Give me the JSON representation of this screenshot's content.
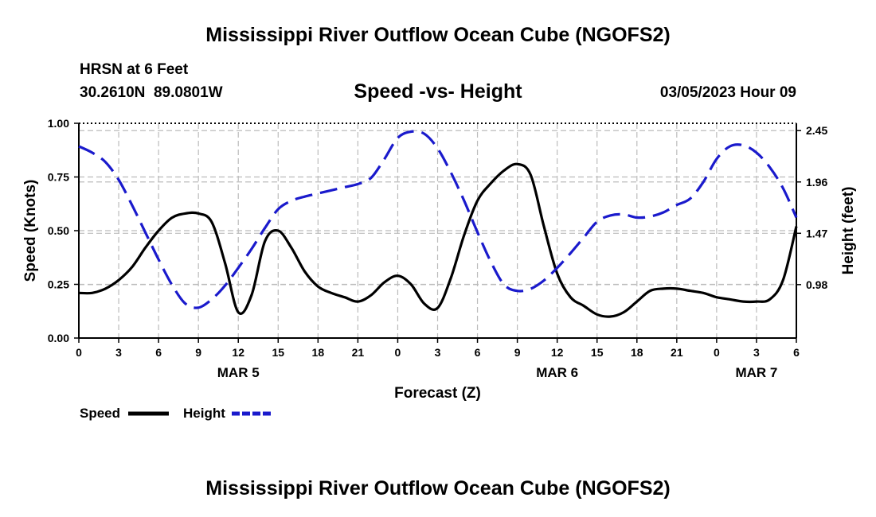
{
  "title": "Mississippi River Outflow Ocean Cube (NGOFS2)",
  "footer_title": "Mississippi River Outflow Ocean Cube (NGOFS2)",
  "station": {
    "name": "HRSN at 6 Feet",
    "coords": "30.2610N  89.0801W"
  },
  "subtitle": "Speed -vs- Height",
  "timestamp": "03/05/2023 Hour 09",
  "chart_data": {
    "type": "line",
    "xlabel": "Forecast (Z)",
    "ylabel_left": "Speed (Knots)",
    "ylabel_right": "Height (feet)",
    "x_range": [
      0,
      54
    ],
    "x_ticks": [
      0,
      3,
      6,
      9,
      12,
      15,
      18,
      21,
      24,
      27,
      30,
      33,
      36,
      39,
      42,
      45,
      48,
      51,
      54
    ],
    "x_tick_labels": [
      "0",
      "3",
      "6",
      "9",
      "12",
      "15",
      "18",
      "21",
      "0",
      "3",
      "6",
      "9",
      "12",
      "15",
      "18",
      "21",
      "0",
      "3",
      "6"
    ],
    "day_labels": [
      {
        "hour": 12,
        "label": "MAR 5"
      },
      {
        "hour": 36,
        "label": "MAR 6"
      },
      {
        "hour": 51,
        "label": "MAR 7"
      }
    ],
    "y_left": {
      "range": [
        0,
        1.0
      ],
      "ticks": [
        0.0,
        0.25,
        0.5,
        0.75,
        1.0
      ],
      "tick_labels": [
        "0.00",
        "0.25",
        "0.50",
        "0.75",
        "1.00"
      ]
    },
    "y_right": {
      "range": [
        0.47,
        2.52
      ],
      "ticks": [
        0.98,
        1.47,
        1.96,
        2.45
      ],
      "tick_labels": [
        "0.98",
        "1.47",
        "1.96",
        "2.45"
      ]
    },
    "grid": true,
    "series": [
      {
        "name": "Speed",
        "axis": "left",
        "color": "#000000",
        "style": "solid",
        "x": [
          0,
          1,
          2,
          3,
          4,
          5,
          6,
          7,
          8,
          9,
          10,
          11,
          12,
          13,
          14,
          15,
          16,
          17,
          18,
          19,
          20,
          21,
          22,
          23,
          24,
          25,
          26,
          27,
          28,
          29,
          30,
          31,
          32,
          33,
          34,
          35,
          36,
          37,
          38,
          39,
          40,
          41,
          42,
          43,
          44,
          45,
          46,
          47,
          48,
          49,
          50,
          51,
          52,
          53,
          54
        ],
        "values": [
          0.21,
          0.21,
          0.23,
          0.27,
          0.33,
          0.42,
          0.5,
          0.56,
          0.58,
          0.58,
          0.54,
          0.35,
          0.12,
          0.2,
          0.45,
          0.5,
          0.42,
          0.31,
          0.24,
          0.21,
          0.19,
          0.17,
          0.2,
          0.26,
          0.29,
          0.25,
          0.16,
          0.14,
          0.28,
          0.48,
          0.64,
          0.72,
          0.78,
          0.81,
          0.76,
          0.52,
          0.3,
          0.19,
          0.15,
          0.11,
          0.1,
          0.12,
          0.17,
          0.22,
          0.23,
          0.23,
          0.22,
          0.21,
          0.19,
          0.18,
          0.17,
          0.17,
          0.18,
          0.27,
          0.52
        ]
      },
      {
        "name": "Height",
        "axis": "right",
        "color": "#1a1acc",
        "style": "dashed",
        "x": [
          0,
          1,
          2,
          3,
          4,
          5,
          6,
          7,
          8,
          9,
          10,
          11,
          12,
          13,
          14,
          15,
          16,
          17,
          18,
          19,
          20,
          21,
          22,
          23,
          24,
          25,
          26,
          27,
          28,
          29,
          30,
          31,
          32,
          33,
          34,
          35,
          36,
          37,
          38,
          39,
          40,
          41,
          42,
          43,
          44,
          45,
          46,
          47,
          48,
          49,
          50,
          51,
          52,
          53,
          54
        ],
        "values": [
          2.3,
          2.24,
          2.15,
          1.98,
          1.74,
          1.48,
          1.22,
          0.98,
          0.8,
          0.76,
          0.84,
          0.97,
          1.14,
          1.32,
          1.52,
          1.7,
          1.78,
          1.82,
          1.85,
          1.88,
          1.91,
          1.94,
          2.0,
          2.18,
          2.38,
          2.44,
          2.42,
          2.28,
          2.05,
          1.78,
          1.48,
          1.2,
          0.98,
          0.92,
          0.94,
          1.02,
          1.14,
          1.28,
          1.43,
          1.58,
          1.64,
          1.65,
          1.62,
          1.63,
          1.67,
          1.74,
          1.8,
          1.96,
          2.18,
          2.3,
          2.31,
          2.24,
          2.1,
          1.9,
          1.62
        ]
      }
    ],
    "legend": [
      {
        "label": "Speed",
        "color": "#000000",
        "style": "solid"
      },
      {
        "label": "Height",
        "color": "#1a1acc",
        "style": "dashed"
      }
    ]
  }
}
